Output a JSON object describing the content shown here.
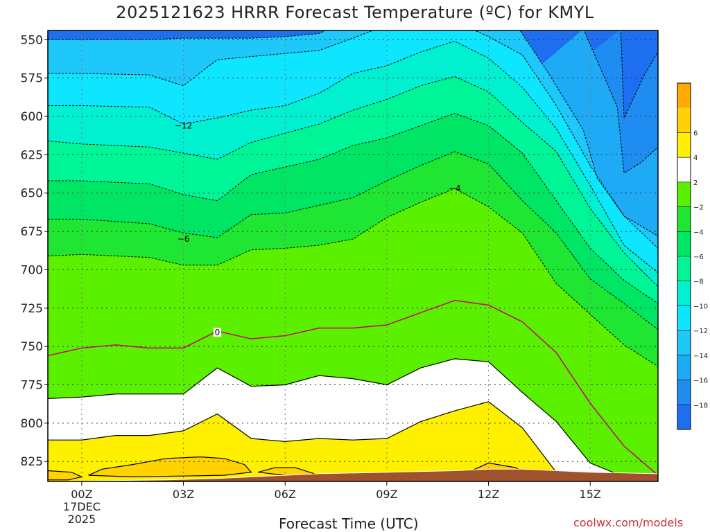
{
  "title": "2025121623 HRRR Forecast Temperature (ºC) for KMYL",
  "xlabel": "Forecast Time (UTC)",
  "credit": "coolwx.com/models",
  "chart_data": {
    "type": "contour",
    "title": "2025121623 HRRR Forecast Temperature (ºC) for KMYL",
    "xlabel": "Forecast Time (UTC)",
    "ylabel": "",
    "x_hours": [
      -1,
      0,
      1,
      2,
      3,
      4,
      5,
      6,
      7,
      8,
      9,
      10,
      11,
      12,
      13,
      14,
      15,
      16,
      17
    ],
    "xlim": [
      -1,
      17
    ],
    "x_ticks": [
      {
        "hour": 0,
        "label": "00Z",
        "sub": [
          "17DEC",
          "2025"
        ]
      },
      {
        "hour": 3,
        "label": "03Z"
      },
      {
        "hour": 6,
        "label": "06Z"
      },
      {
        "hour": 9,
        "label": "09Z"
      },
      {
        "hour": 12,
        "label": "12Z"
      },
      {
        "hour": 15,
        "label": "15Z"
      }
    ],
    "y_axis": "pressure (hPa), reversed",
    "ylim": [
      838,
      544
    ],
    "y_ticks": [
      550,
      575,
      600,
      625,
      650,
      675,
      700,
      725,
      750,
      775,
      800,
      825
    ],
    "grid": true,
    "contour_interval": 2,
    "colorbar": {
      "levels": [
        -20,
        -18,
        -16,
        -14,
        -12,
        -10,
        -8,
        -6,
        -4,
        -2,
        2,
        4,
        6,
        8
      ],
      "tick_labels": [
        "-18",
        "-16",
        "-14",
        "-12",
        "-10",
        "-8",
        "-6",
        "-4",
        "-2",
        "2",
        "4",
        "6"
      ],
      "colors": [
        "#1e6ef0",
        "#1e8cf0",
        "#1eaaf5",
        "#1ec8fa",
        "#0ee6ff",
        "#00f0d0",
        "#00f596",
        "#00e664",
        "#1ee632",
        "#5af000",
        "#ffffff",
        "#fff000",
        "#ffd200",
        "#ffaa00"
      ]
    },
    "contour_labels": [
      {
        "value": "-12",
        "hour": 3,
        "p": 606
      },
      {
        "value": "-6",
        "hour": 3,
        "p": 680
      },
      {
        "value": "-4",
        "hour": 11,
        "p": 647
      },
      {
        "value": "0",
        "hour": 4,
        "p": 741
      }
    ],
    "isotherms": [
      {
        "temp": -18,
        "points": [
          [
            15.9,
            543
          ],
          [
            16.0,
            601
          ],
          [
            16.6,
            573
          ],
          [
            17.0,
            558
          ]
        ]
      },
      {
        "temp": -16,
        "points": [
          [
            14.8,
            543
          ],
          [
            15.8,
            594
          ],
          [
            16.0,
            637
          ],
          [
            16.5,
            630
          ],
          [
            17.0,
            620
          ]
        ]
      },
      {
        "temp": -14,
        "points": [
          [
            -1,
            550
          ],
          [
            0,
            550
          ],
          [
            2,
            550
          ],
          [
            3,
            549
          ],
          [
            5,
            549
          ],
          [
            6,
            548
          ],
          [
            7,
            546
          ],
          [
            7.3,
            543
          ],
          [
            12.9,
            543
          ],
          [
            13.8,
            573
          ],
          [
            14.8,
            609
          ],
          [
            15.2,
            640
          ],
          [
            16.0,
            665
          ],
          [
            17.0,
            678
          ]
        ]
      },
      {
        "temp": -12,
        "points": [
          [
            -1,
            572
          ],
          [
            0,
            572
          ],
          [
            2,
            573
          ],
          [
            3,
            580
          ],
          [
            4,
            563
          ],
          [
            6,
            559
          ],
          [
            7,
            557
          ],
          [
            8,
            549
          ],
          [
            8.7,
            543
          ],
          [
            11.5,
            543
          ],
          [
            12.0,
            548
          ],
          [
            13.0,
            560
          ],
          [
            14.0,
            593
          ],
          [
            15.0,
            632
          ],
          [
            16.0,
            665
          ],
          [
            17.0,
            686
          ]
        ]
      },
      {
        "temp": -10,
        "points": [
          [
            -1,
            593
          ],
          [
            0,
            593
          ],
          [
            2,
            594
          ],
          [
            3,
            605
          ],
          [
            4,
            601
          ],
          [
            5,
            596
          ],
          [
            6,
            593
          ],
          [
            7,
            585
          ],
          [
            8,
            572
          ],
          [
            9,
            567
          ],
          [
            10,
            558
          ],
          [
            11,
            551
          ],
          [
            12,
            562
          ],
          [
            13,
            581
          ],
          [
            14,
            608
          ],
          [
            15,
            645
          ],
          [
            16,
            684
          ],
          [
            17,
            702
          ]
        ]
      },
      {
        "temp": -8,
        "points": [
          [
            -1,
            616
          ],
          [
            0,
            618
          ],
          [
            2,
            620
          ],
          [
            3,
            624
          ],
          [
            4,
            628
          ],
          [
            5,
            617
          ],
          [
            6,
            611
          ],
          [
            7,
            605
          ],
          [
            8,
            596
          ],
          [
            9,
            589
          ],
          [
            10,
            580
          ],
          [
            11,
            574
          ],
          [
            12,
            584
          ],
          [
            13,
            604
          ],
          [
            14,
            623
          ],
          [
            15,
            660
          ],
          [
            16,
            689
          ],
          [
            17,
            711
          ]
        ]
      },
      {
        "temp": -6,
        "points": [
          [
            -1,
            642
          ],
          [
            0,
            642
          ],
          [
            2,
            644
          ],
          [
            3,
            651
          ],
          [
            4,
            655
          ],
          [
            5,
            638
          ],
          [
            6,
            633
          ],
          [
            7,
            628
          ],
          [
            8,
            619
          ],
          [
            9,
            614
          ],
          [
            10,
            606
          ],
          [
            11,
            598
          ],
          [
            12,
            606
          ],
          [
            13,
            624
          ],
          [
            14,
            655
          ],
          [
            15,
            686
          ],
          [
            16,
            707
          ],
          [
            17,
            722
          ]
        ]
      },
      {
        "temp": -4,
        "points": [
          [
            -1,
            667
          ],
          [
            0,
            667
          ],
          [
            2,
            670
          ],
          [
            3,
            676
          ],
          [
            4,
            679
          ],
          [
            5,
            664
          ],
          [
            6,
            663
          ],
          [
            7,
            658
          ],
          [
            8,
            653
          ],
          [
            9,
            642
          ],
          [
            10,
            632
          ],
          [
            11,
            623
          ],
          [
            12,
            631
          ],
          [
            13,
            655
          ],
          [
            14,
            676
          ],
          [
            15,
            706
          ],
          [
            16,
            722
          ],
          [
            17,
            739
          ]
        ]
      },
      {
        "temp": -2,
        "points": [
          [
            -1,
            691
          ],
          [
            0,
            690
          ],
          [
            2,
            692
          ],
          [
            3,
            697
          ],
          [
            4,
            697
          ],
          [
            5,
            687
          ],
          [
            6,
            686
          ],
          [
            7,
            684
          ],
          [
            8,
            680
          ],
          [
            9,
            666
          ],
          [
            10,
            656
          ],
          [
            11,
            647
          ],
          [
            12,
            659
          ],
          [
            13,
            676
          ],
          [
            14,
            709
          ],
          [
            15,
            729
          ],
          [
            16,
            749
          ],
          [
            17,
            763
          ]
        ]
      },
      {
        "temp": 0,
        "points": [
          [
            -1,
            756
          ],
          [
            0,
            751
          ],
          [
            1,
            749
          ],
          [
            2,
            751
          ],
          [
            3,
            751
          ],
          [
            4,
            740
          ],
          [
            5,
            745
          ],
          [
            6,
            743
          ],
          [
            7,
            738
          ],
          [
            8,
            738
          ],
          [
            9,
            736
          ],
          [
            10,
            728
          ],
          [
            11,
            720
          ],
          [
            12,
            723
          ],
          [
            13,
            734
          ],
          [
            14,
            754
          ],
          [
            15,
            787
          ],
          [
            16,
            815
          ],
          [
            17,
            834
          ]
        ]
      },
      {
        "temp": 2,
        "points": [
          [
            -1,
            784
          ],
          [
            0,
            783
          ],
          [
            1,
            781
          ],
          [
            2,
            781
          ],
          [
            3,
            781
          ],
          [
            4,
            764
          ],
          [
            5,
            776
          ],
          [
            6,
            775
          ],
          [
            7,
            769
          ],
          [
            8,
            771
          ],
          [
            9,
            775
          ],
          [
            10,
            764
          ],
          [
            11,
            758
          ],
          [
            12,
            760
          ],
          [
            13,
            780
          ],
          [
            14,
            799
          ],
          [
            15,
            826
          ],
          [
            16,
            835
          ]
        ]
      },
      {
        "temp": 4,
        "points": [
          [
            -1,
            811
          ],
          [
            0,
            811
          ],
          [
            1,
            808
          ],
          [
            2,
            808
          ],
          [
            3,
            805
          ],
          [
            4,
            794
          ],
          [
            5,
            810
          ],
          [
            6,
            812
          ],
          [
            7,
            810
          ],
          [
            8,
            811
          ],
          [
            9,
            810
          ],
          [
            10,
            799
          ],
          [
            11,
            792
          ],
          [
            12,
            786
          ],
          [
            13,
            803
          ],
          [
            14,
            832
          ],
          [
            14.3,
            836
          ]
        ]
      }
    ],
    "closed_contours": [
      {
        "temp": 6,
        "points": [
          [
            0.2,
            834
          ],
          [
            0.6,
            830
          ],
          [
            1.5,
            827
          ],
          [
            2.5,
            823
          ],
          [
            3.5,
            822
          ],
          [
            4.2,
            823
          ],
          [
            4.8,
            827
          ],
          [
            5.0,
            832
          ],
          [
            4.2,
            834
          ],
          [
            1.5,
            835
          ]
        ]
      },
      {
        "temp": 6,
        "points": [
          [
            5.2,
            832
          ],
          [
            5.7,
            829
          ],
          [
            6.3,
            829
          ],
          [
            7.0,
            834
          ],
          [
            6.0,
            834
          ]
        ]
      },
      {
        "temp": 6,
        "points": [
          [
            -1,
            831
          ],
          [
            -0.3,
            832
          ],
          [
            0.0,
            835
          ],
          [
            -0.4,
            837
          ],
          [
            -1,
            837
          ]
        ]
      },
      {
        "temp": 6,
        "points": [
          [
            11.3,
            833
          ],
          [
            12.0,
            826
          ],
          [
            12.8,
            829
          ],
          [
            13.2,
            834
          ],
          [
            12.5,
            835
          ]
        ]
      }
    ],
    "terrain": [
      [
        -1,
        838
      ],
      [
        2.5,
        837
      ],
      [
        4.0,
        836
      ],
      [
        6.0,
        834
      ],
      [
        7.0,
        833
      ],
      [
        9.0,
        832
      ],
      [
        11.0,
        831
      ],
      [
        12.0,
        830
      ],
      [
        13.0,
        830
      ],
      [
        14.0,
        831
      ],
      [
        15.0,
        832
      ],
      [
        17.0,
        833
      ]
    ]
  }
}
